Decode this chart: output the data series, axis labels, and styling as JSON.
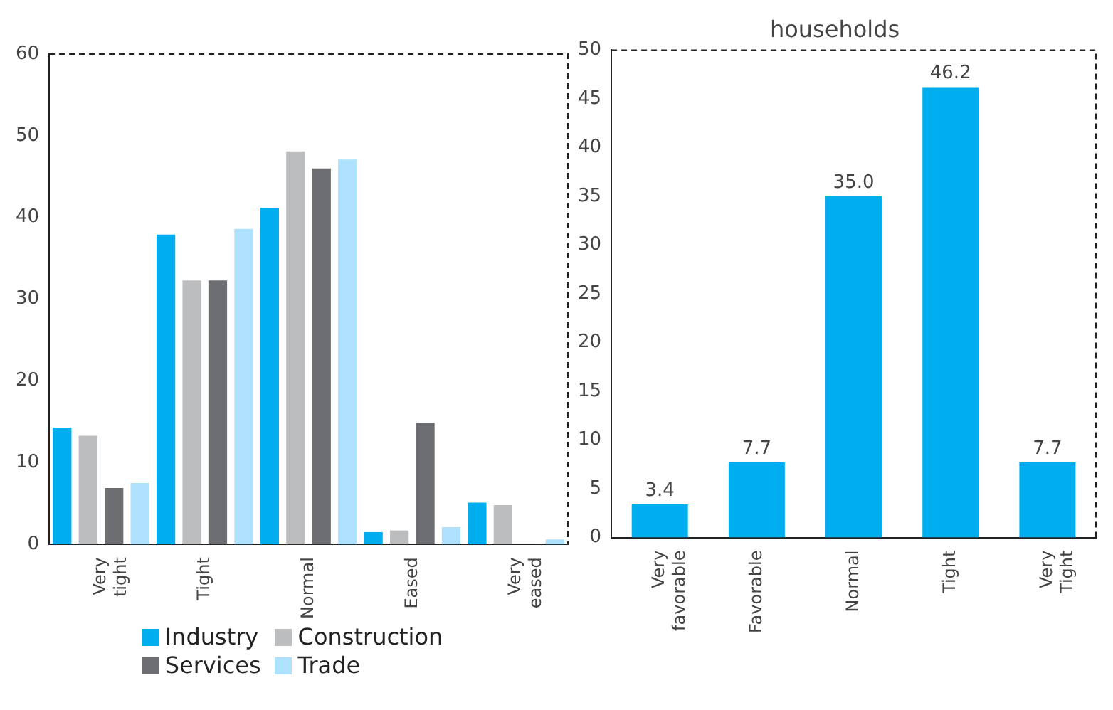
{
  "chart_data": [
    {
      "type": "bar",
      "categories": [
        "Very tight",
        "Tight",
        "Normal",
        "Eased",
        "Very eased"
      ],
      "series": [
        {
          "name": "Industry",
          "color": "#00adef",
          "values": [
            14.3,
            37.9,
            41.2,
            1.5,
            5.1
          ]
        },
        {
          "name": "Construction",
          "color": "#bcbdbf",
          "values": [
            13.3,
            32.3,
            48.1,
            1.7,
            4.8
          ]
        },
        {
          "name": "Services",
          "color": "#6d6e71",
          "values": [
            6.9,
            32.3,
            46.0,
            14.9,
            0
          ]
        },
        {
          "name": "Trade",
          "color": "#aee1fb",
          "values": [
            7.5,
            38.6,
            47.1,
            2.1,
            0.6
          ]
        }
      ],
      "ylim": [
        0,
        60
      ],
      "yticks": [
        0,
        10,
        20,
        30,
        40,
        50,
        60
      ],
      "grid": false,
      "legend": "bottom"
    },
    {
      "type": "bar",
      "title": "households",
      "categories": [
        "Very favorable",
        "Favorable",
        "Normal",
        "Tight",
        "Very Tight"
      ],
      "values": [
        3.4,
        7.7,
        35.0,
        46.2,
        7.7
      ],
      "color": "#00adef",
      "ylim": [
        0,
        50
      ],
      "yticks": [
        0,
        5,
        10,
        15,
        20,
        25,
        30,
        35,
        40,
        45,
        50
      ],
      "grid": false,
      "data_labels": true,
      "value_labels": [
        "3.4",
        "7.7",
        "35.0",
        "46.2",
        "7.7"
      ]
    }
  ]
}
